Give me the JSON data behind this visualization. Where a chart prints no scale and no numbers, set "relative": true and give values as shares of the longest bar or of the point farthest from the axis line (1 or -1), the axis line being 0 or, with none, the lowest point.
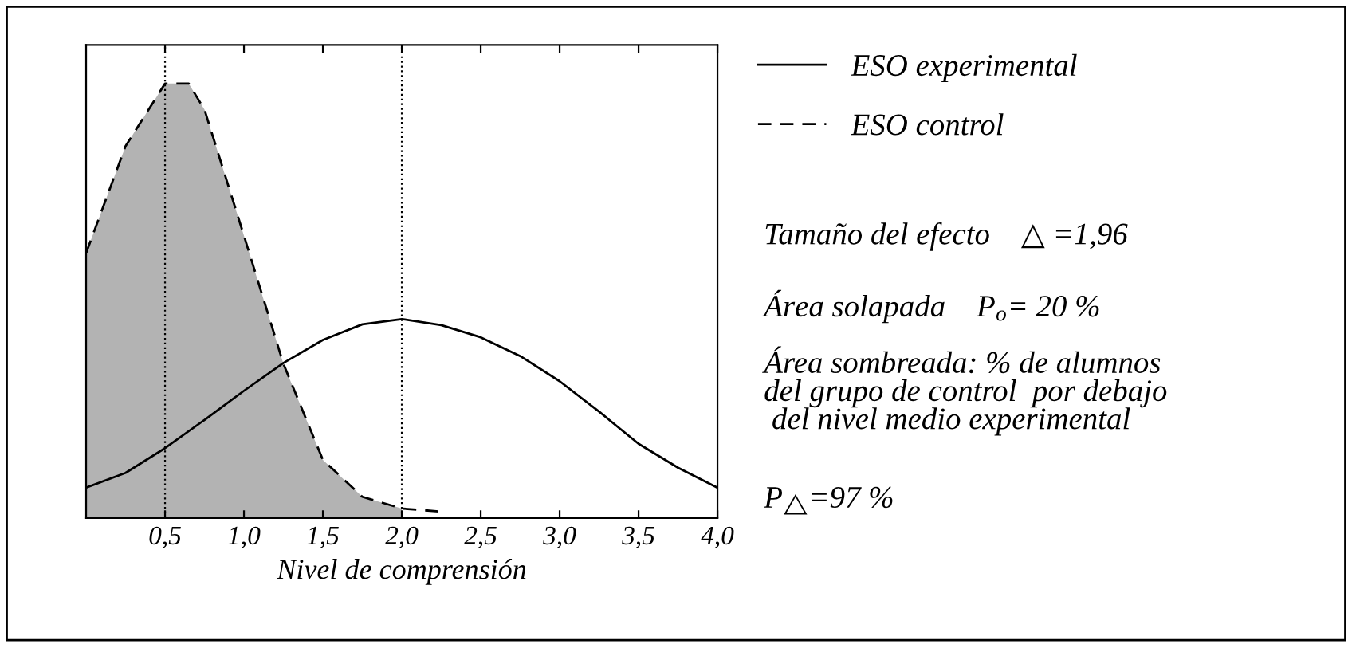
{
  "chart_data": {
    "type": "line",
    "relative": true,
    "xlabel": "Nivel de comprensión",
    "xlim": [
      0,
      4.0
    ],
    "xticks": [
      {
        "value": 0.5,
        "label": "0,5"
      },
      {
        "value": 1.0,
        "label": "1,0"
      },
      {
        "value": 1.5,
        "label": "1,5"
      },
      {
        "value": 2.0,
        "label": "2,0"
      },
      {
        "value": 2.5,
        "label": "2,5"
      },
      {
        "value": 3.0,
        "label": "3,0"
      },
      {
        "value": 3.5,
        "label": "3,5"
      },
      {
        "value": 4.0,
        "label": "4,0"
      }
    ],
    "series": [
      {
        "type": "area",
        "color": "#b3b3b3",
        "x": [
          0,
          0.25,
          0.5,
          0.65,
          0.75,
          1.0,
          1.25,
          1.5,
          1.75,
          2.0
        ],
        "values": [
          0.61,
          0.856,
          1.0,
          1.0,
          0.94,
          0.65,
          0.355,
          0.134,
          0.049,
          0.022
        ]
      },
      {
        "name": "ESO experimental",
        "color": "#000000",
        "line_style": "solid",
        "x": [
          0,
          0.25,
          0.5,
          0.75,
          1.0,
          1.25,
          1.5,
          1.75,
          2.0,
          2.25,
          2.5,
          2.75,
          3.0,
          3.25,
          3.5,
          3.75,
          4.0
        ],
        "values": [
          0.07,
          0.104,
          0.161,
          0.226,
          0.293,
          0.357,
          0.41,
          0.446,
          0.458,
          0.444,
          0.416,
          0.373,
          0.315,
          0.245,
          0.171,
          0.116,
          0.07
        ]
      },
      {
        "name": "ESO control",
        "color": "#000000",
        "line_style": "dashed",
        "x": [
          0,
          0.25,
          0.5,
          0.65,
          0.75,
          1.0,
          1.25,
          1.5,
          1.75,
          2.0,
          2.25
        ],
        "values": [
          0.61,
          0.856,
          1.0,
          1.0,
          0.94,
          0.65,
          0.355,
          0.134,
          0.049,
          0.022,
          0.015
        ]
      }
    ],
    "ref_lines": [
      {
        "axis": "x",
        "value": 0.5,
        "color": "#000000",
        "line_style": "dotted"
      },
      {
        "axis": "x",
        "value": 2.0,
        "color": "#000000",
        "line_style": "dotted"
      }
    ],
    "legend": "right",
    "grid": false,
    "annotations": [
      "Tamaño del efecto    △ =1,96",
      "Área solapada    P$_{o}$= 20 %",
      "Área sombreada: % de alumnos\ndel grupo de control  por debajo\n del nivel medio experimental",
      "P$_{△}$=97 %"
    ]
  }
}
